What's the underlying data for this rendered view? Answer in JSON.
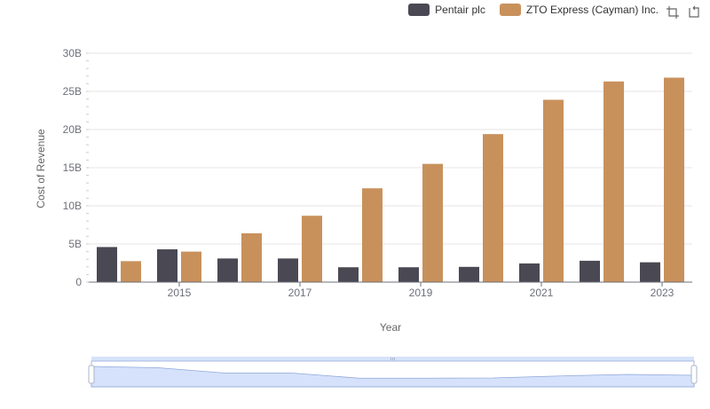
{
  "legend": {
    "series1": "Pentair plc",
    "series2": "ZTO Express (Cayman) Inc."
  },
  "toolbox": {
    "zoom_icon": "zoom-select-icon",
    "restore_icon": "restore-icon"
  },
  "colors": {
    "series1": "#4a4953",
    "series2": "#c8915c",
    "grid": "#e6e6e6",
    "axis": "#6e7079",
    "zoom_fill": "#d6e2fb",
    "zoom_border": "#a8b8e0"
  },
  "chart_data": {
    "type": "bar",
    "xlabel": "Year",
    "ylabel": "Cost of Revenue",
    "ylim": [
      0,
      30000000000
    ],
    "y_ticks": [
      "0",
      "5B",
      "10B",
      "15B",
      "20B",
      "25B",
      "30B"
    ],
    "x_tick_labels": [
      "2015",
      "2017",
      "2019",
      "2021",
      "2023"
    ],
    "categories": [
      "2014",
      "2015",
      "2016",
      "2017",
      "2018",
      "2019",
      "2020",
      "2021",
      "2022",
      "2023"
    ],
    "series": [
      {
        "name": "Pentair plc",
        "values": [
          4600000000,
          4300000000,
          3100000000,
          3100000000,
          1950000000,
          1950000000,
          2000000000,
          2450000000,
          2800000000,
          2600000000
        ]
      },
      {
        "name": "ZTO Express (Cayman) Inc.",
        "values": [
          2750000000,
          4000000000,
          6400000000,
          8700000000,
          12300000000,
          15500000000,
          19400000000,
          23900000000,
          26300000000,
          26800000000
        ]
      }
    ],
    "grid": true,
    "legend_position": "top-right",
    "data_zoom": {
      "start": 0,
      "end": 100
    }
  }
}
